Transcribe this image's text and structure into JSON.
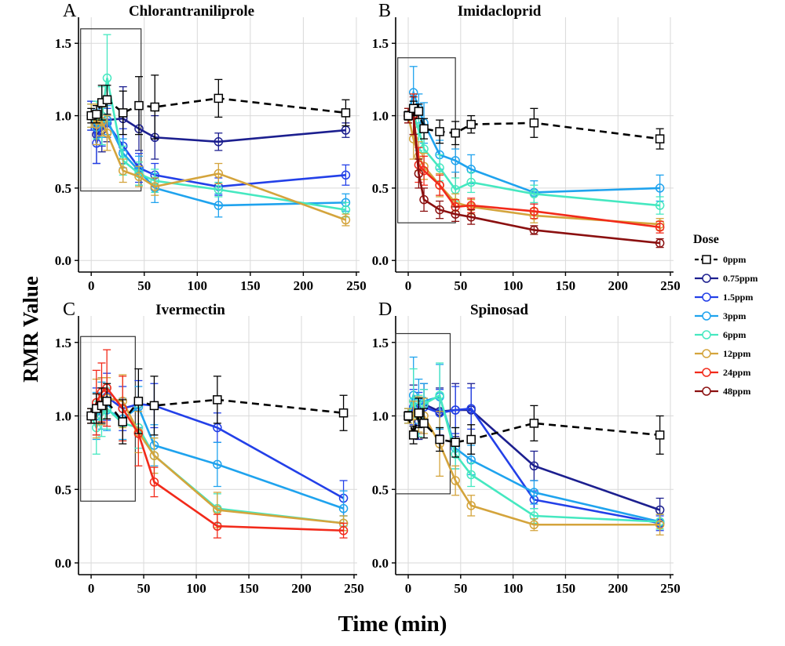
{
  "figure": {
    "y_axis_title": "RMR Value",
    "x_axis_title": "Time (min)"
  },
  "legend": {
    "title": "Dose",
    "items": [
      {
        "label": "0ppm",
        "color": "#000000",
        "marker": "square",
        "dashed": true
      },
      {
        "label": "0.75ppm",
        "color": "#1c1f8f",
        "marker": "circle",
        "dashed": false
      },
      {
        "label": "1.5ppm",
        "color": "#2340e8",
        "marker": "circle",
        "dashed": false
      },
      {
        "label": "3ppm",
        "color": "#1fa3ee",
        "marker": "circle",
        "dashed": false
      },
      {
        "label": "6ppm",
        "color": "#45e8c0",
        "marker": "circle",
        "dashed": false
      },
      {
        "label": "12ppm",
        "color": "#d4a43c",
        "marker": "circle",
        "dashed": false
      },
      {
        "label": "24ppm",
        "color": "#f22a1a",
        "marker": "circle",
        "dashed": false
      },
      {
        "label": "48ppm",
        "color": "#8b1010",
        "marker": "circle",
        "dashed": false
      }
    ]
  },
  "chart_data": [
    {
      "letter": "A",
      "title": "Chlorantraniliprole",
      "type": "line",
      "xlabel": "Time (min)",
      "ylabel": "RMR Value",
      "xlim": [
        -12,
        253
      ],
      "ylim": [
        -0.08,
        1.68
      ],
      "xticks": [
        0,
        50,
        100,
        150,
        200,
        250
      ],
      "yticks": [
        0.0,
        0.5,
        1.0,
        1.5
      ],
      "x": [
        0,
        5,
        10,
        15,
        30,
        45,
        60,
        120,
        240
      ],
      "inset_box": {
        "x": [
          -10,
          47
        ],
        "y": [
          0.48,
          1.6
        ]
      },
      "series": [
        {
          "name": "0ppm",
          "values": [
            1.0,
            1.01,
            1.09,
            1.11,
            1.02,
            1.07,
            1.06,
            1.12,
            1.02
          ],
          "err": [
            0.05,
            0.06,
            0.12,
            0.1,
            0.15,
            0.2,
            0.22,
            0.13,
            0.09
          ]
        },
        {
          "name": "0.75ppm",
          "values": [
            1.0,
            0.87,
            0.9,
            0.97,
            0.98,
            0.91,
            0.85,
            0.82,
            0.9
          ],
          "err": [
            0.1,
            0.2,
            0.15,
            0.15,
            0.22,
            0.15,
            0.15,
            0.06,
            0.05
          ]
        },
        {
          "name": "1.5ppm",
          "values": [
            1.0,
            0.81,
            0.93,
            0.95,
            0.79,
            0.64,
            0.59,
            0.51,
            0.59
          ],
          "err": [
            0.1,
            0.14,
            0.14,
            0.1,
            0.12,
            0.1,
            0.08,
            0.06,
            0.07
          ]
        },
        {
          "name": "3ppm",
          "values": [
            1.0,
            0.92,
            0.95,
            0.97,
            0.74,
            0.62,
            0.5,
            0.38,
            0.4
          ],
          "err": [
            0.08,
            0.12,
            0.1,
            0.1,
            0.1,
            0.1,
            0.1,
            0.08,
            0.06
          ]
        },
        {
          "name": "6ppm",
          "values": [
            1.0,
            0.97,
            1.0,
            1.26,
            0.69,
            0.6,
            0.55,
            0.49,
            0.35
          ],
          "err": [
            0.08,
            0.13,
            0.2,
            0.3,
            0.1,
            0.08,
            0.08,
            0.05,
            0.05
          ]
        },
        {
          "name": "12ppm",
          "values": [
            1.0,
            0.94,
            0.96,
            0.88,
            0.62,
            0.58,
            0.51,
            0.6,
            0.28
          ],
          "err": [
            0.08,
            0.14,
            0.1,
            0.12,
            0.08,
            0.07,
            0.06,
            0.07,
            0.04
          ]
        }
      ]
    },
    {
      "letter": "B",
      "title": "Imidacloprid",
      "type": "line",
      "xlabel": "Time (min)",
      "ylabel": "RMR Value",
      "xlim": [
        -12,
        253
      ],
      "ylim": [
        -0.08,
        1.68
      ],
      "xticks": [
        0,
        50,
        100,
        150,
        200,
        250
      ],
      "yticks": [
        0.0,
        0.5,
        1.0,
        1.5
      ],
      "x": [
        0,
        5,
        10,
        15,
        30,
        45,
        60,
        120,
        240
      ],
      "inset_box": {
        "x": [
          -10,
          45
        ],
        "y": [
          0.26,
          1.4
        ]
      },
      "series": [
        {
          "name": "0ppm",
          "values": [
            1.0,
            1.05,
            1.03,
            0.91,
            0.89,
            0.88,
            0.94,
            0.95,
            0.84
          ],
          "err": [
            0.03,
            0.05,
            0.05,
            0.07,
            0.08,
            0.08,
            0.06,
            0.1,
            0.07
          ]
        },
        {
          "name": "3ppm",
          "values": [
            1.0,
            1.16,
            1.05,
            0.95,
            0.73,
            0.69,
            0.63,
            0.47,
            0.5
          ],
          "err": [
            0.05,
            0.18,
            0.1,
            0.14,
            0.1,
            0.08,
            0.1,
            0.08,
            0.09
          ]
        },
        {
          "name": "6ppm",
          "values": [
            1.0,
            1.01,
            0.9,
            0.77,
            0.64,
            0.49,
            0.54,
            0.46,
            0.38
          ],
          "err": [
            0.05,
            0.14,
            0.14,
            0.14,
            0.09,
            0.08,
            0.07,
            0.06,
            0.06
          ]
        },
        {
          "name": "12ppm",
          "values": [
            1.0,
            0.84,
            0.72,
            0.65,
            0.52,
            0.4,
            0.37,
            0.31,
            0.25
          ],
          "err": [
            0.05,
            0.14,
            0.1,
            0.09,
            0.08,
            0.06,
            0.05,
            0.05,
            0.04
          ]
        },
        {
          "name": "24ppm",
          "values": [
            1.0,
            1.01,
            0.66,
            0.62,
            0.52,
            0.37,
            0.38,
            0.34,
            0.23
          ],
          "err": [
            0.05,
            0.14,
            0.12,
            0.1,
            0.07,
            0.05,
            0.05,
            0.05,
            0.04
          ]
        },
        {
          "name": "48ppm",
          "values": [
            1.0,
            1.0,
            0.6,
            0.42,
            0.35,
            0.32,
            0.3,
            0.21,
            0.12
          ],
          "err": [
            0.05,
            0.13,
            0.1,
            0.08,
            0.06,
            0.05,
            0.05,
            0.03,
            0.03
          ]
        }
      ]
    },
    {
      "letter": "C",
      "title": "Ivermectin",
      "type": "line",
      "xlabel": "Time (min)",
      "ylabel": "RMR Value",
      "xlim": [
        -12,
        253
      ],
      "ylim": [
        -0.08,
        1.68
      ],
      "xticks": [
        0,
        50,
        100,
        150,
        200,
        250
      ],
      "yticks": [
        0.0,
        0.5,
        1.0,
        1.5
      ],
      "x": [
        0,
        5,
        10,
        15,
        30,
        45,
        60,
        120,
        240
      ],
      "inset_box": {
        "x": [
          -10,
          42
        ],
        "y": [
          0.42,
          1.54
        ]
      },
      "series": [
        {
          "name": "0ppm",
          "values": [
            1.0,
            1.05,
            1.07,
            1.1,
            0.96,
            1.1,
            1.07,
            1.11,
            1.02
          ],
          "err": [
            0.05,
            0.1,
            0.12,
            0.12,
            0.15,
            0.22,
            0.2,
            0.16,
            0.12
          ]
        },
        {
          "name": "1.5ppm",
          "values": [
            1.0,
            1.03,
            1.1,
            1.13,
            1.05,
            1.08,
            1.07,
            0.92,
            0.44
          ],
          "err": [
            0.05,
            0.16,
            0.16,
            0.16,
            0.15,
            0.16,
            0.15,
            0.1,
            0.12
          ]
        },
        {
          "name": "3ppm",
          "values": [
            1.0,
            1.0,
            1.07,
            1.04,
            0.98,
            1.06,
            0.8,
            0.67,
            0.37
          ],
          "err": [
            0.05,
            0.16,
            0.16,
            0.14,
            0.14,
            0.14,
            0.14,
            0.15,
            0.12
          ]
        },
        {
          "name": "6ppm",
          "values": [
            1.0,
            0.92,
            1.0,
            1.05,
            0.95,
            0.92,
            0.73,
            0.37,
            0.27
          ],
          "err": [
            0.05,
            0.18,
            0.14,
            0.14,
            0.12,
            0.14,
            0.12,
            0.1,
            0.05
          ]
        },
        {
          "name": "12ppm",
          "values": [
            1.0,
            1.05,
            1.1,
            1.12,
            1.1,
            0.89,
            0.73,
            0.36,
            0.27
          ],
          "err": [
            0.05,
            0.2,
            0.16,
            0.14,
            0.18,
            0.14,
            0.12,
            0.12,
            0.05
          ]
        },
        {
          "name": "24ppm",
          "values": [
            1.0,
            1.09,
            1.16,
            1.19,
            1.05,
            0.88,
            0.55,
            0.25,
            0.22
          ],
          "err": [
            0.05,
            0.22,
            0.2,
            0.26,
            0.22,
            0.22,
            0.1,
            0.08,
            0.05
          ]
        }
      ]
    },
    {
      "letter": "D",
      "title": "Spinosad",
      "type": "line",
      "xlabel": "Time (min)",
      "ylabel": "RMR Value",
      "xlim": [
        -12,
        253
      ],
      "ylim": [
        -0.08,
        1.68
      ],
      "xticks": [
        0,
        50,
        100,
        150,
        200,
        250
      ],
      "yticks": [
        0.0,
        0.5,
        1.0,
        1.5
      ],
      "x": [
        0,
        5,
        10,
        15,
        30,
        45,
        60,
        120,
        240
      ],
      "inset_box": {
        "x": [
          -12,
          40
        ],
        "y": [
          0.47,
          1.56
        ]
      },
      "series": [
        {
          "name": "0ppm",
          "values": [
            1.0,
            0.87,
            1.02,
            0.95,
            0.84,
            0.82,
            0.84,
            0.95,
            0.87
          ],
          "err": [
            0.03,
            0.06,
            0.1,
            0.1,
            0.08,
            0.1,
            0.1,
            0.12,
            0.13
          ]
        },
        {
          "name": "0.75ppm",
          "values": [
            1.0,
            1.05,
            0.96,
            1.08,
            1.03,
            1.04,
            1.04,
            0.66,
            0.36
          ],
          "err": [
            0.05,
            0.16,
            0.12,
            0.14,
            0.16,
            0.18,
            0.18,
            0.1,
            0.08
          ]
        },
        {
          "name": "1.5ppm",
          "values": [
            1.0,
            1.06,
            1.02,
            1.06,
            1.02,
            1.04,
            1.05,
            0.43,
            0.27
          ],
          "err": [
            0.05,
            0.12,
            0.14,
            0.12,
            0.16,
            0.16,
            0.14,
            0.06,
            0.05
          ]
        },
        {
          "name": "3ppm",
          "values": [
            1.0,
            1.14,
            1.1,
            1.1,
            1.13,
            0.78,
            0.7,
            0.48,
            0.28
          ],
          "err": [
            0.05,
            0.26,
            0.15,
            0.12,
            0.22,
            0.14,
            0.1,
            0.08,
            0.05
          ]
        },
        {
          "name": "6ppm",
          "values": [
            1.0,
            1.1,
            1.0,
            1.08,
            1.14,
            0.74,
            0.6,
            0.32,
            0.28
          ],
          "err": [
            0.05,
            0.22,
            0.14,
            0.1,
            0.22,
            0.1,
            0.08,
            0.05,
            0.05
          ]
        },
        {
          "name": "12ppm",
          "values": [
            1.0,
            1.0,
            1.01,
            1.0,
            0.81,
            0.56,
            0.39,
            0.26,
            0.26
          ],
          "err": [
            0.05,
            0.1,
            0.12,
            0.12,
            0.22,
            0.1,
            0.07,
            0.04,
            0.07
          ]
        }
      ]
    }
  ]
}
